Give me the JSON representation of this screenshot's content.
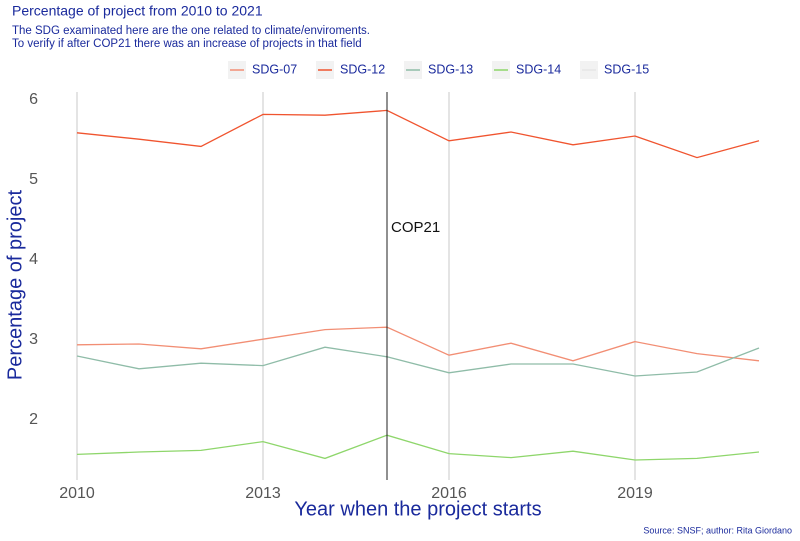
{
  "chart_data": {
    "type": "line",
    "title": "Percentage of project from 2010 to 2021",
    "subtitle": [
      "The SDG examinated here are the one related to climate/enviroments.",
      "To verify if after COP21 there was an increase of projects in that field"
    ],
    "x_label": "Year when the project starts",
    "y_label": "Percentage of project",
    "caption": "Source: SNSF; author: Rita Giordano",
    "x": [
      2010,
      2011,
      2012,
      2013,
      2014,
      2015,
      2016,
      2017,
      2018,
      2019,
      2020,
      2021
    ],
    "series": [
      {
        "name": "SDG-07",
        "color": "#f28e74",
        "values": [
          2.94,
          2.95,
          2.89,
          3.01,
          3.13,
          3.16,
          2.81,
          2.96,
          2.74,
          2.98,
          2.83,
          2.74
        ]
      },
      {
        "name": "SDG-12",
        "color": "#f0542f",
        "values": [
          5.59,
          5.51,
          5.42,
          5.82,
          5.81,
          5.87,
          5.49,
          5.6,
          5.44,
          5.55,
          5.28,
          5.49
        ]
      },
      {
        "name": "SDG-13",
        "color": "#8fbca8",
        "values": [
          2.8,
          2.64,
          2.71,
          2.68,
          2.91,
          2.79,
          2.59,
          2.7,
          2.7,
          2.55,
          2.6,
          2.9
        ]
      },
      {
        "name": "SDG-14",
        "color": "#8ed66b",
        "values": [
          1.57,
          1.6,
          1.62,
          1.73,
          1.52,
          1.81,
          1.58,
          1.53,
          1.61,
          1.5,
          1.52,
          1.6
        ]
      },
      {
        "name": "SDG-15",
        "color": "#e6e6e6",
        "values": [
          null,
          null,
          null,
          null,
          null,
          null,
          null,
          null,
          null,
          null,
          null,
          null
        ]
      }
    ],
    "xlim": [
      2009.5,
      2021.5
    ],
    "xticks": [
      2010,
      2013,
      2016,
      2019
    ],
    "ylim": [
      1.25,
      6.1
    ],
    "yticks": [
      2,
      3,
      4,
      5,
      6
    ],
    "grid": "x",
    "vline": 2015,
    "annotation": {
      "text": "COP21",
      "x": 2015,
      "y": 4.4
    },
    "legend": "top"
  }
}
